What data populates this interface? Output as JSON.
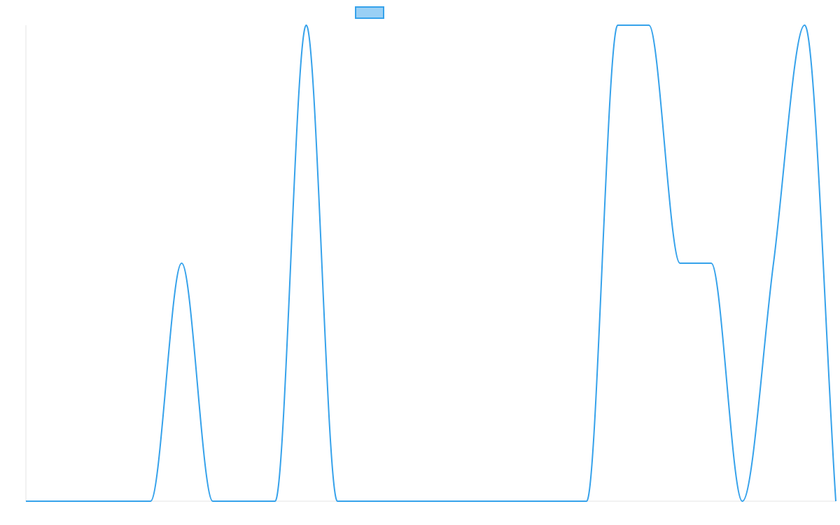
{
  "chart_data": {
    "type": "line",
    "title": "",
    "xlabel": "",
    "ylabel": "",
    "x": [
      0,
      1,
      2,
      3,
      4,
      5,
      6,
      7,
      8,
      9,
      10,
      11,
      12,
      13,
      14,
      15,
      16,
      17,
      18,
      19,
      20,
      21,
      22,
      23,
      24,
      25,
      26
    ],
    "series": [
      {
        "name": "",
        "values": [
          0,
          0,
          0,
          0,
          0,
          0.5,
          0,
          0,
          0,
          1,
          0,
          0,
          0,
          0,
          0,
          0,
          0,
          0,
          0,
          1,
          1,
          0.5,
          0.5,
          0,
          0.5,
          1,
          0
        ]
      }
    ],
    "ylim": [
      0,
      1
    ],
    "xlim": [
      0,
      26
    ],
    "grid": false,
    "legend": "top-center",
    "colors": {
      "line": "#36a2eb",
      "legend_fill": "#9ad0f5",
      "axis": "#e5e5e5"
    }
  }
}
